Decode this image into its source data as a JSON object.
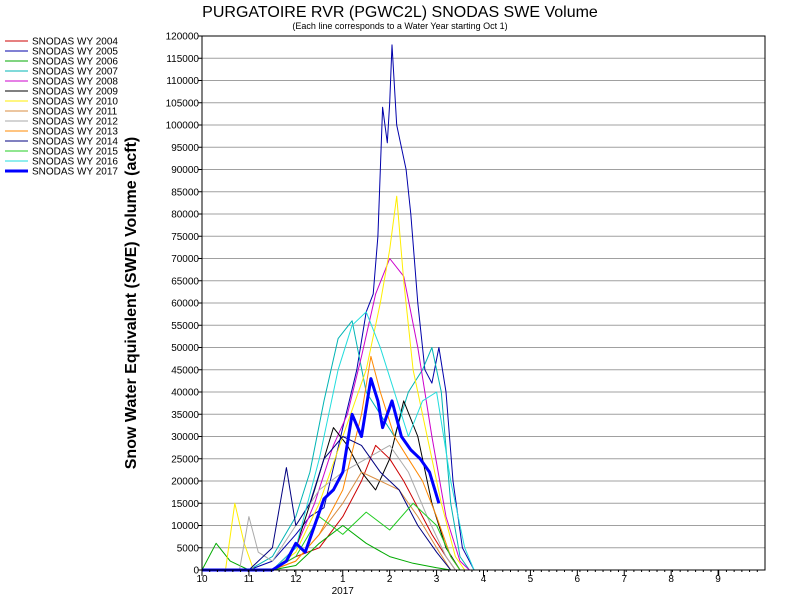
{
  "chart_data": {
    "type": "line",
    "title": "PURGATOIRE RVR (PGWC2L) SNODAS SWE Volume",
    "subtitle": "(Each line corresponds to a Water Year starting Oct 1)",
    "ylabel": "Snow Water Equivalent (SWE) Volume (acft)",
    "xlabel": "",
    "ylim": [
      0,
      120000
    ],
    "y_ticks": [
      0,
      5000,
      10000,
      15000,
      20000,
      25000,
      30000,
      35000,
      40000,
      45000,
      50000,
      55000,
      60000,
      65000,
      70000,
      75000,
      80000,
      85000,
      90000,
      95000,
      100000,
      105000,
      110000,
      115000,
      120000
    ],
    "x_ticks": [
      "10",
      "11",
      "12",
      "1",
      "2",
      "3",
      "4",
      "5",
      "6",
      "7",
      "8",
      "9"
    ],
    "x_year_label": "2017",
    "grid": "horizontal",
    "legend_position": "left",
    "series": [
      {
        "name": "SNODAS WY 2004",
        "color": "#cc0000",
        "width": 1,
        "points": [
          [
            0,
            0
          ],
          [
            1.5,
            0
          ],
          [
            2.0,
            3000
          ],
          [
            2.5,
            5000
          ],
          [
            3.0,
            12000
          ],
          [
            3.4,
            20000
          ],
          [
            3.7,
            28000
          ],
          [
            4.0,
            25000
          ],
          [
            4.3,
            20000
          ],
          [
            4.6,
            14000
          ],
          [
            4.9,
            8000
          ],
          [
            5.2,
            3000
          ],
          [
            5.4,
            0
          ]
        ]
      },
      {
        "name": "SNODAS WY 2005",
        "color": "#0000aa",
        "width": 1,
        "points": [
          [
            0,
            0
          ],
          [
            1.0,
            0
          ],
          [
            1.5,
            2000
          ],
          [
            2.0,
            8000
          ],
          [
            2.3,
            12000
          ],
          [
            2.6,
            14000
          ],
          [
            3.0,
            32000
          ],
          [
            3.3,
            45000
          ],
          [
            3.5,
            58000
          ],
          [
            3.65,
            62000
          ],
          [
            3.75,
            75000
          ],
          [
            3.85,
            104000
          ],
          [
            3.95,
            96000
          ],
          [
            4.0,
            105000
          ],
          [
            4.05,
            118000
          ],
          [
            4.15,
            100000
          ],
          [
            4.25,
            95000
          ],
          [
            4.35,
            90000
          ],
          [
            4.45,
            80000
          ],
          [
            4.6,
            60000
          ],
          [
            4.75,
            45000
          ],
          [
            4.9,
            42000
          ],
          [
            5.05,
            50000
          ],
          [
            5.2,
            40000
          ],
          [
            5.35,
            20000
          ],
          [
            5.55,
            5000
          ],
          [
            5.8,
            0
          ]
        ]
      },
      {
        "name": "SNODAS WY 2006",
        "color": "#00aa00",
        "width": 1,
        "points": [
          [
            0,
            0
          ],
          [
            0.3,
            6000
          ],
          [
            0.6,
            2000
          ],
          [
            1.0,
            0
          ],
          [
            1.5,
            0
          ],
          [
            2.0,
            1000
          ],
          [
            2.5,
            6000
          ],
          [
            3.0,
            10000
          ],
          [
            3.5,
            6000
          ],
          [
            4.0,
            3000
          ],
          [
            4.5,
            1500
          ],
          [
            5.0,
            500
          ],
          [
            5.3,
            0
          ]
        ]
      },
      {
        "name": "SNODAS WY 2007",
        "color": "#00b4b4",
        "width": 1,
        "points": [
          [
            0,
            0
          ],
          [
            1.0,
            0
          ],
          [
            1.5,
            3000
          ],
          [
            2.0,
            12000
          ],
          [
            2.3,
            22000
          ],
          [
            2.6,
            38000
          ],
          [
            2.9,
            52000
          ],
          [
            3.2,
            56000
          ],
          [
            3.5,
            40000
          ],
          [
            3.8,
            35000
          ],
          [
            4.1,
            30000
          ],
          [
            4.4,
            40000
          ],
          [
            4.7,
            45000
          ],
          [
            4.9,
            50000
          ],
          [
            5.1,
            40000
          ],
          [
            5.3,
            15000
          ],
          [
            5.5,
            3000
          ],
          [
            5.7,
            0
          ]
        ]
      },
      {
        "name": "SNODAS WY 2008",
        "color": "#cc00cc",
        "width": 1,
        "points": [
          [
            0,
            0
          ],
          [
            1.5,
            0
          ],
          [
            2.0,
            5000
          ],
          [
            2.4,
            15000
          ],
          [
            2.8,
            28000
          ],
          [
            3.1,
            35000
          ],
          [
            3.4,
            48000
          ],
          [
            3.7,
            62000
          ],
          [
            4.0,
            70000
          ],
          [
            4.3,
            66000
          ],
          [
            4.6,
            50000
          ],
          [
            4.9,
            30000
          ],
          [
            5.2,
            12000
          ],
          [
            5.5,
            2000
          ],
          [
            5.7,
            0
          ]
        ]
      },
      {
        "name": "SNODAS WY 2009",
        "color": "#000000",
        "width": 1,
        "points": [
          [
            0,
            0
          ],
          [
            1.5,
            0
          ],
          [
            2.0,
            5000
          ],
          [
            2.4,
            18000
          ],
          [
            2.8,
            32000
          ],
          [
            3.1,
            28000
          ],
          [
            3.4,
            22000
          ],
          [
            3.7,
            18000
          ],
          [
            4.0,
            25000
          ],
          [
            4.3,
            38000
          ],
          [
            4.6,
            30000
          ],
          [
            4.9,
            15000
          ],
          [
            5.2,
            5000
          ],
          [
            5.5,
            0
          ]
        ]
      },
      {
        "name": "SNODAS WY 2010",
        "color": "#ffee00",
        "width": 1,
        "points": [
          [
            0,
            0
          ],
          [
            0.5,
            0
          ],
          [
            0.7,
            15000
          ],
          [
            0.9,
            6000
          ],
          [
            1.1,
            0
          ],
          [
            1.5,
            0
          ],
          [
            2.0,
            4000
          ],
          [
            2.5,
            15000
          ],
          [
            3.0,
            30000
          ],
          [
            3.5,
            45000
          ],
          [
            3.8,
            60000
          ],
          [
            4.0,
            72000
          ],
          [
            4.15,
            84000
          ],
          [
            4.3,
            65000
          ],
          [
            4.5,
            45000
          ],
          [
            4.8,
            30000
          ],
          [
            5.1,
            15000
          ],
          [
            5.4,
            3000
          ],
          [
            5.6,
            0
          ]
        ]
      },
      {
        "name": "SNODAS WY 2011",
        "color": "#d98c40",
        "width": 1,
        "points": [
          [
            0,
            0
          ],
          [
            1.5,
            0
          ],
          [
            2.0,
            2000
          ],
          [
            2.5,
            8000
          ],
          [
            3.0,
            15000
          ],
          [
            3.4,
            22000
          ],
          [
            3.8,
            20000
          ],
          [
            4.2,
            18000
          ],
          [
            4.6,
            12000
          ],
          [
            5.0,
            5000
          ],
          [
            5.3,
            0
          ]
        ]
      },
      {
        "name": "SNODAS WY 2012",
        "color": "#aaaaaa",
        "width": 1,
        "points": [
          [
            0,
            0
          ],
          [
            0.8,
            0
          ],
          [
            1.0,
            12000
          ],
          [
            1.2,
            4000
          ],
          [
            1.5,
            2000
          ],
          [
            2.0,
            10000
          ],
          [
            2.5,
            18000
          ],
          [
            3.0,
            22000
          ],
          [
            3.5,
            25000
          ],
          [
            4.0,
            28000
          ],
          [
            4.4,
            22000
          ],
          [
            4.8,
            12000
          ],
          [
            5.2,
            3000
          ],
          [
            5.4,
            0
          ]
        ]
      },
      {
        "name": "SNODAS WY 2013",
        "color": "#ff8800",
        "width": 1,
        "points": [
          [
            0,
            0
          ],
          [
            1.5,
            0
          ],
          [
            2.0,
            2000
          ],
          [
            2.5,
            8000
          ],
          [
            3.0,
            18000
          ],
          [
            3.4,
            35000
          ],
          [
            3.6,
            48000
          ],
          [
            3.8,
            40000
          ],
          [
            4.1,
            30000
          ],
          [
            4.4,
            25000
          ],
          [
            4.7,
            20000
          ],
          [
            5.0,
            12000
          ],
          [
            5.3,
            3000
          ],
          [
            5.5,
            0
          ]
        ]
      },
      {
        "name": "SNODAS WY 2014",
        "color": "#000080",
        "width": 1,
        "points": [
          [
            0,
            0
          ],
          [
            1.0,
            0
          ],
          [
            1.5,
            5000
          ],
          [
            1.8,
            23000
          ],
          [
            2.0,
            10000
          ],
          [
            2.3,
            15000
          ],
          [
            2.6,
            25000
          ],
          [
            3.0,
            30000
          ],
          [
            3.4,
            28000
          ],
          [
            3.8,
            22000
          ],
          [
            4.2,
            18000
          ],
          [
            4.6,
            10000
          ],
          [
            5.0,
            4000
          ],
          [
            5.3,
            0
          ]
        ]
      },
      {
        "name": "SNODAS WY 2015",
        "color": "#22cc22",
        "width": 1,
        "points": [
          [
            0,
            0
          ],
          [
            1.5,
            0
          ],
          [
            2.0,
            3000
          ],
          [
            2.5,
            12000
          ],
          [
            3.0,
            8000
          ],
          [
            3.5,
            13000
          ],
          [
            4.0,
            9000
          ],
          [
            4.5,
            15000
          ],
          [
            5.0,
            10000
          ],
          [
            5.3,
            3000
          ],
          [
            5.5,
            0
          ]
        ]
      },
      {
        "name": "SNODAS WY 2016",
        "color": "#22dddd",
        "width": 1,
        "points": [
          [
            0,
            0
          ],
          [
            1.5,
            0
          ],
          [
            2.0,
            5000
          ],
          [
            2.5,
            25000
          ],
          [
            2.9,
            45000
          ],
          [
            3.2,
            55000
          ],
          [
            3.5,
            58000
          ],
          [
            3.8,
            50000
          ],
          [
            4.1,
            40000
          ],
          [
            4.4,
            30000
          ],
          [
            4.7,
            38000
          ],
          [
            5.0,
            40000
          ],
          [
            5.3,
            20000
          ],
          [
            5.6,
            5000
          ],
          [
            5.8,
            0
          ]
        ]
      },
      {
        "name": "SNODAS WY 2017",
        "color": "#0000ff",
        "width": 3,
        "points": [
          [
            0,
            0
          ],
          [
            1.5,
            0
          ],
          [
            1.8,
            2000
          ],
          [
            2.0,
            6000
          ],
          [
            2.2,
            4000
          ],
          [
            2.4,
            10000
          ],
          [
            2.6,
            16000
          ],
          [
            2.8,
            18000
          ],
          [
            3.0,
            22000
          ],
          [
            3.2,
            35000
          ],
          [
            3.4,
            30000
          ],
          [
            3.6,
            43000
          ],
          [
            3.75,
            38000
          ],
          [
            3.85,
            32000
          ],
          [
            4.05,
            38000
          ],
          [
            4.25,
            30000
          ],
          [
            4.45,
            27000
          ],
          [
            4.65,
            25000
          ],
          [
            4.85,
            22000
          ],
          [
            5.05,
            15000
          ]
        ]
      }
    ]
  }
}
